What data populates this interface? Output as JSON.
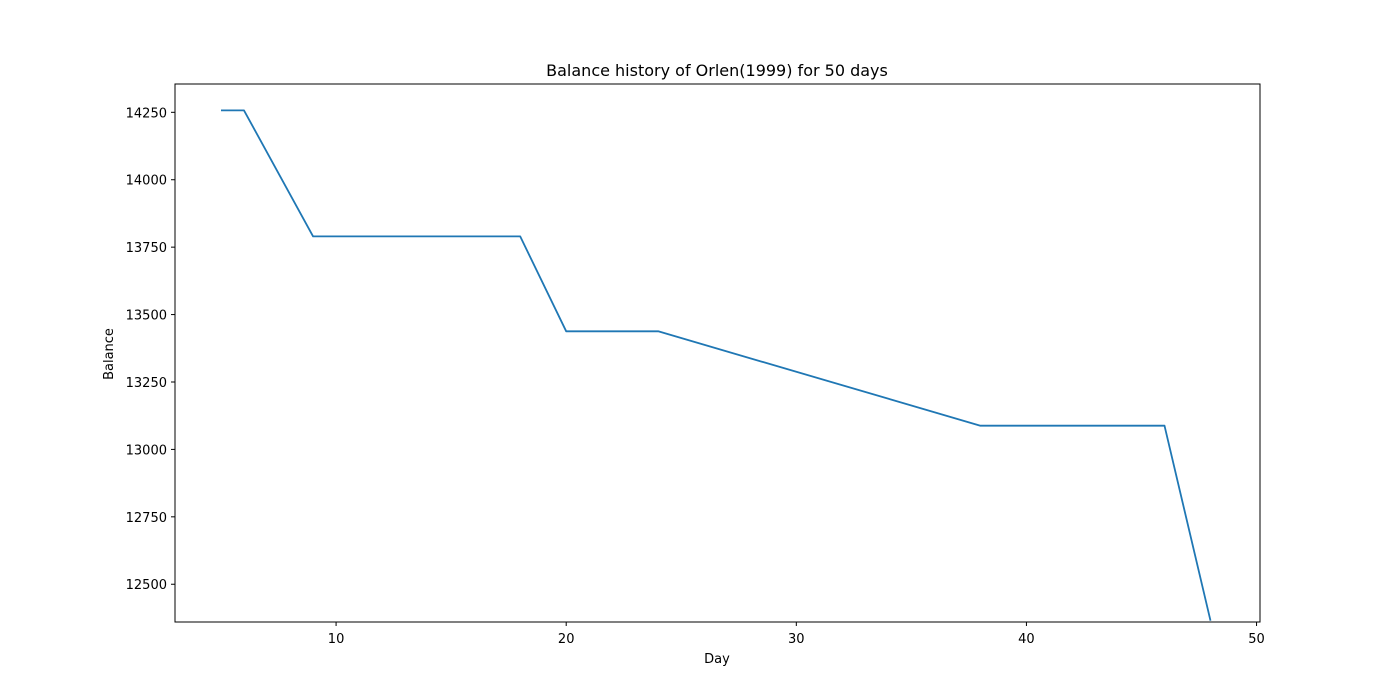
{
  "chart_data": {
    "type": "line",
    "title": "Balance history of Orlen(1999) for 50 days",
    "xlabel": "Day",
    "ylabel": "Balance",
    "xlim": [
      3.0,
      50.15
    ],
    "ylim": [
      12360,
      14355
    ],
    "xticks": [
      10,
      20,
      30,
      40,
      50
    ],
    "yticks": [
      12500,
      12750,
      13000,
      13250,
      13500,
      13750,
      14000,
      14250
    ],
    "grid": false,
    "series_color": "#1f77b4",
    "series": [
      {
        "x": [
          5,
          6,
          9,
          18,
          20,
          24,
          38,
          46,
          48
        ],
        "y": [
          14257,
          14257,
          13790,
          13790,
          13438,
          13438,
          13088,
          13088,
          12365
        ]
      }
    ]
  }
}
